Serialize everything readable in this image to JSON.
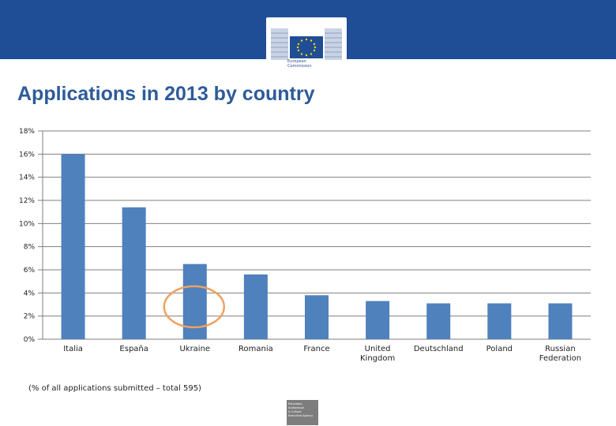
{
  "header": {
    "logo_text": "European\nCommission",
    "banner_color": "#1f4e96"
  },
  "slide": {
    "title": "Applications in 2013 by country",
    "footnote": "(% of all applications submitted – total 595)"
  },
  "agency_logo_text": "Education,\nAudiovisual\n& Culture\nExecutive Agency",
  "chart_data": {
    "type": "bar",
    "categories": [
      "Italia",
      "España",
      "Ukraine",
      "Romania",
      "France",
      "United\nKingdom",
      "Deutschland",
      "Poland",
      "Russian\nFederation"
    ],
    "values": [
      16.0,
      11.4,
      6.5,
      5.6,
      3.8,
      3.3,
      3.1,
      3.1,
      3.1
    ],
    "unit": "%",
    "ylim": [
      0,
      18
    ],
    "yticks": [
      0,
      2,
      4,
      6,
      8,
      10,
      12,
      14,
      16,
      18
    ],
    "ytick_labels": [
      "0%",
      "2%",
      "4%",
      "6%",
      "8%",
      "10%",
      "12%",
      "14%",
      "16%",
      "18%"
    ],
    "grid": true,
    "bar_color": "#4f81bd",
    "annotation": {
      "type": "ellipse-highlight",
      "target_category": "Ukraine",
      "color": "#f0a060"
    }
  }
}
